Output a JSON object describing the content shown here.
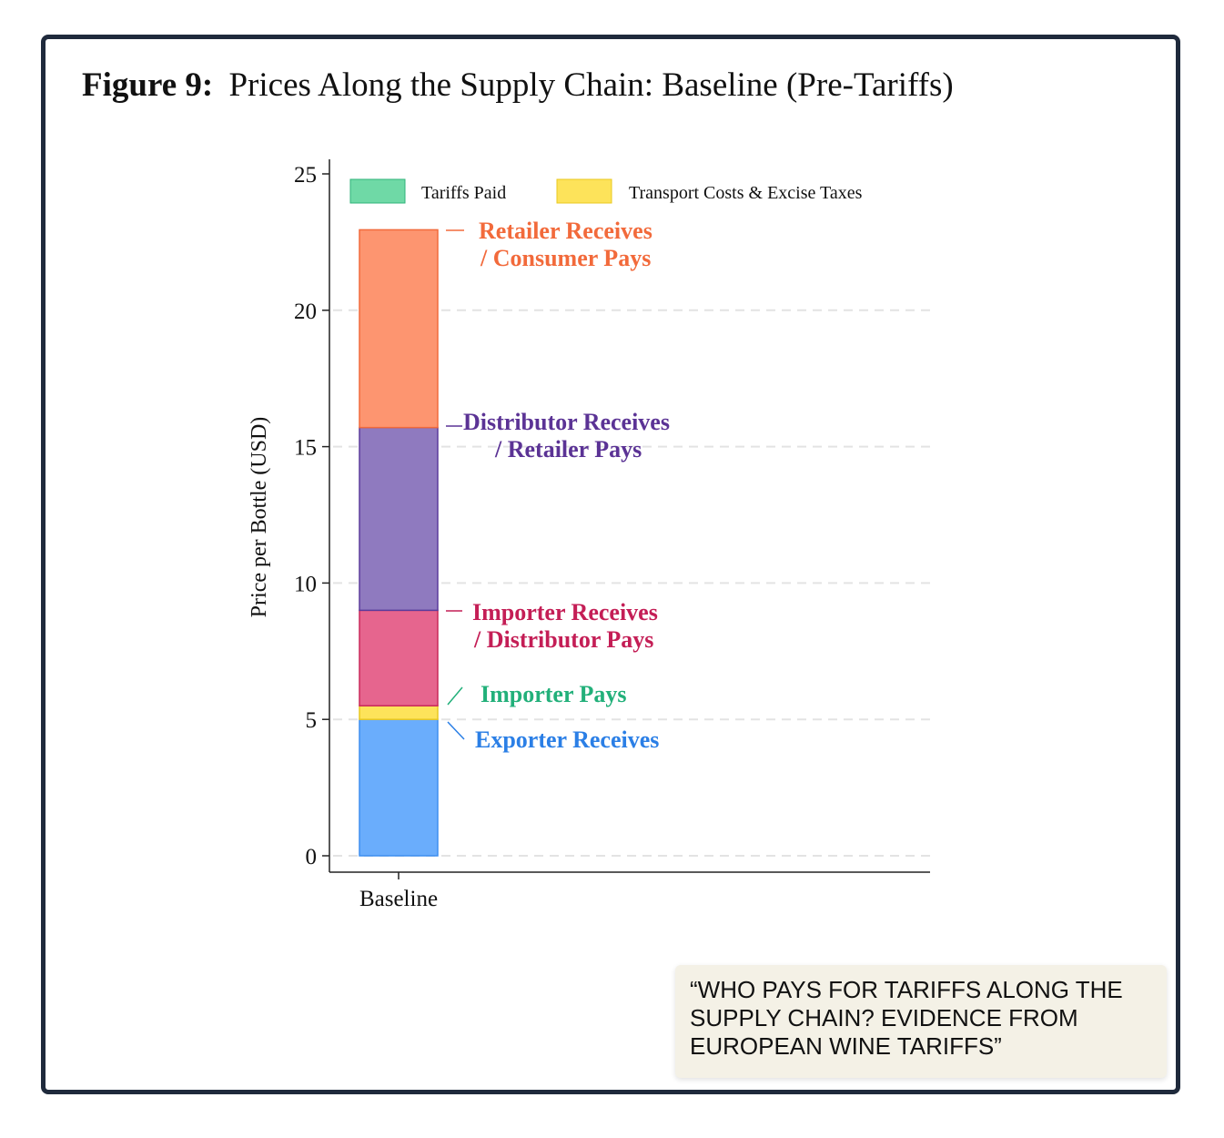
{
  "figure": {
    "number_label": "Figure 9:",
    "title": "Prices Along the Supply Chain: Baseline (Pre-Tariffs)"
  },
  "quote": {
    "text": "“WHO PAYS FOR TARIFFS ALONG THE SUPPLY CHAIN? EVIDENCE FROM EUROPEAN WINE TARIFFS”"
  },
  "colors": {
    "frame": "#1f2a3c",
    "exporter": "#6aadfc",
    "transport": "#fde35a",
    "tariffs": "#6fd9a6",
    "importer": "#e6658e",
    "distributor": "#8f7abf",
    "retailer": "#fd9570"
  },
  "chart_data": {
    "type": "bar",
    "stacked": true,
    "categories": [
      "Baseline"
    ],
    "ylabel": "Price per Bottle (USD)",
    "xlabel": "",
    "ylim": [
      0,
      25
    ],
    "yticks": [
      0,
      5,
      10,
      15,
      20,
      25
    ],
    "grid": true,
    "legend": {
      "position": "top",
      "entries": [
        {
          "label": "Tariffs Paid",
          "color": "#6fd9a6"
        },
        {
          "label": "Transport Costs & Excise Taxes",
          "color": "#fde35a"
        }
      ]
    },
    "series": [
      {
        "key": "exporter",
        "start": 0.0,
        "end": 5.0,
        "color": "#6aadfc",
        "border": "#3d8ef0",
        "label_lines": [
          "Exporter Receives"
        ],
        "label_color": "#2b7fe6"
      },
      {
        "key": "transport",
        "start": 5.0,
        "end": 5.5,
        "color": "#fde35a",
        "border": "#e9c820",
        "label_lines": [],
        "label_color": "#e9c820"
      },
      {
        "key": "importer_margin",
        "start": 5.5,
        "end": 9.0,
        "color": "#e6658e",
        "border": "#c8285a",
        "label_lines": [
          "Importer Receives",
          "/ Distributor Pays"
        ],
        "label_color": "#c41e56"
      },
      {
        "key": "distributor_margin",
        "start": 9.0,
        "end": 15.7,
        "color": "#8f7abf",
        "border": "#5b3b9c",
        "label_lines": [
          "Distributor Receives",
          "/ Retailer Pays"
        ],
        "label_color": "#5b3395"
      },
      {
        "key": "retailer_margin",
        "start": 15.7,
        "end": 22.95,
        "color": "#fd9570",
        "border": "#f26a3b",
        "label_lines": [
          "Retailer Receives",
          "/ Consumer Pays"
        ],
        "label_color": "#f26a3b"
      }
    ],
    "annotations": [
      {
        "text": "Importer Pays",
        "y": 5.5,
        "color": "#22b07a"
      }
    ]
  }
}
